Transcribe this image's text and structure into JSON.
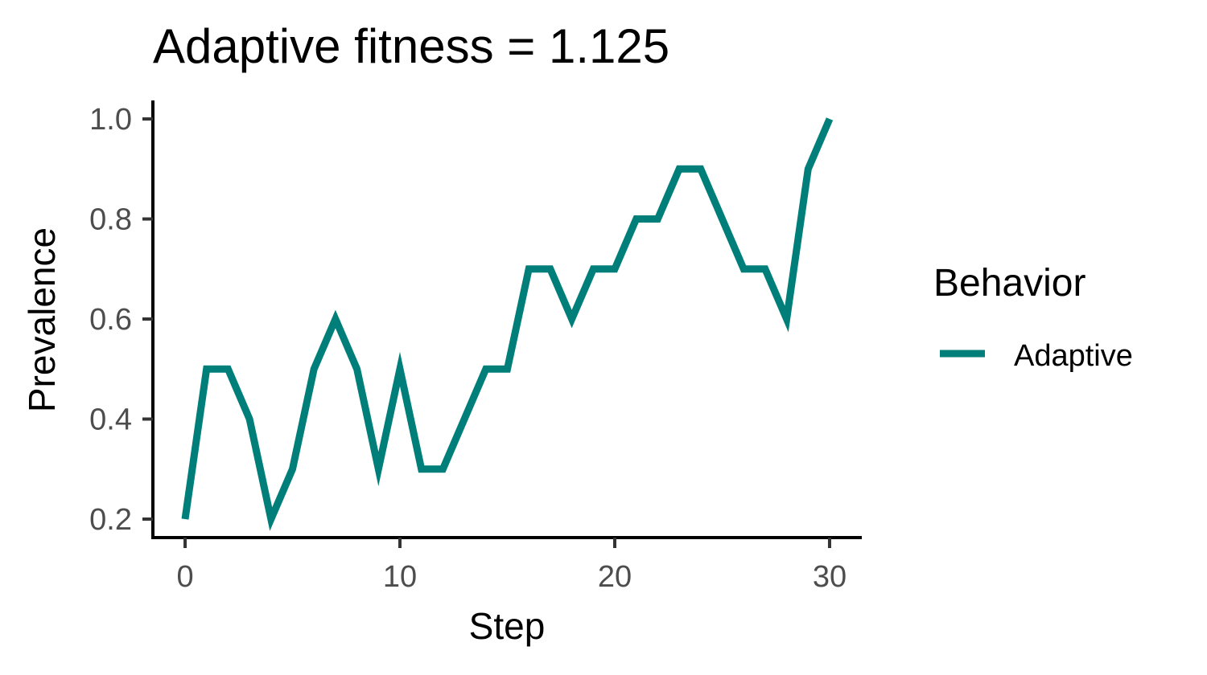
{
  "chart_data": {
    "type": "line",
    "title": "Adaptive fitness = 1.125",
    "xlabel": "Step",
    "ylabel": "Prevalence",
    "x_ticks": [
      "0",
      "10",
      "20",
      "30"
    ],
    "x_tick_values": [
      0,
      10,
      20,
      30
    ],
    "y_ticks": [
      "0.2",
      "0.4",
      "0.6",
      "0.8",
      "1.0"
    ],
    "y_tick_values": [
      0.2,
      0.4,
      0.6,
      0.8,
      1.0
    ],
    "xlim": [
      -1.5,
      31.5
    ],
    "ylim": [
      0.163,
      1.037
    ],
    "grid": false,
    "legend": {
      "title": "Behavior",
      "placement": "right",
      "entries": [
        "Adaptive"
      ]
    },
    "series": [
      {
        "name": "Adaptive",
        "color": "#007F7A",
        "x": [
          0,
          1,
          2,
          3,
          4,
          5,
          6,
          7,
          8,
          9,
          10,
          11,
          12,
          13,
          14,
          15,
          16,
          17,
          18,
          19,
          20,
          21,
          22,
          23,
          24,
          25,
          26,
          27,
          28,
          29,
          30
        ],
        "y": [
          0.2,
          0.5,
          0.5,
          0.4,
          0.2,
          0.3,
          0.5,
          0.6,
          0.5,
          0.3,
          0.5,
          0.3,
          0.3,
          0.4,
          0.5,
          0.5,
          0.7,
          0.7,
          0.6,
          0.7,
          0.7,
          0.8,
          0.8,
          0.9,
          0.9,
          0.8,
          0.7,
          0.7,
          0.6,
          0.9,
          1.0
        ]
      }
    ]
  }
}
